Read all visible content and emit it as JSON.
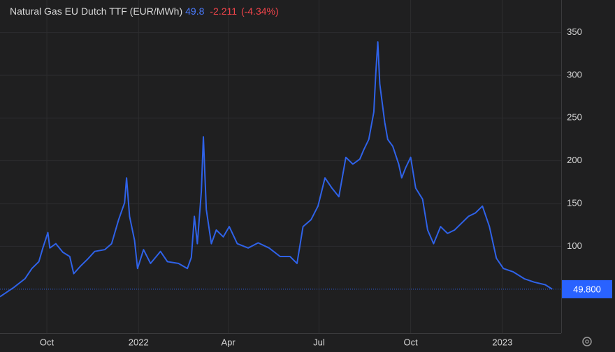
{
  "chart_data": {
    "type": "line",
    "title": "Natural Gas EU Dutch TTF (EUR/MWh)",
    "header_price": "49.8",
    "header_change": "-2.211",
    "header_change_pct": "(-4.34%)",
    "last_value": {
      "value": 49.8,
      "label": "49.800"
    },
    "x": [
      0,
      14,
      25,
      32,
      39,
      43,
      48,
      50,
      56,
      63,
      70,
      74,
      81,
      88,
      95,
      105,
      112,
      119,
      125,
      127,
      130,
      135,
      138,
      144,
      151,
      161,
      168,
      179,
      188,
      192,
      195,
      198,
      202,
      204,
      207,
      212,
      217,
      224,
      230,
      238,
      249,
      259,
      270,
      281,
      291,
      298,
      304,
      312,
      319,
      326,
      333,
      340,
      347,
      354,
      361,
      365,
      370,
      375,
      377,
      379,
      381,
      386,
      389,
      394,
      400,
      403,
      407,
      412,
      417,
      424,
      429,
      435,
      442,
      449,
      456,
      463,
      470,
      477,
      484,
      491,
      498,
      505,
      515,
      526,
      536,
      547,
      554
    ],
    "series": [
      {
        "name": "Natural Gas EU Dutch TTF",
        "color": "#2f62e8",
        "values": [
          41,
          52,
          62,
          74,
          82,
          98,
          116,
          98,
          103,
          93,
          88,
          68,
          77,
          85,
          94,
          96,
          103,
          131,
          151,
          180,
          135,
          107,
          74,
          96,
          80,
          94,
          82,
          80,
          74,
          87,
          135,
          103,
          164,
          228,
          143,
          103,
          119,
          111,
          123,
          103,
          98,
          104,
          98,
          88,
          88,
          80,
          123,
          131,
          147,
          180,
          168,
          158,
          204,
          196,
          202,
          213,
          225,
          257,
          302,
          339,
          290,
          245,
          225,
          217,
          196,
          180,
          192,
          204,
          168,
          155,
          119,
          103,
          123,
          115,
          119,
          127,
          135,
          139,
          147,
          123,
          86,
          74,
          70,
          62,
          58,
          55,
          49.8
        ]
      }
    ],
    "xlim": [
      0,
      563
    ],
    "ylim": [
      0,
      388
    ],
    "xticks": [
      {
        "value": 47,
        "label": "Oct"
      },
      {
        "value": 139,
        "label": "2022"
      },
      {
        "value": 229,
        "label": "Apr"
      },
      {
        "value": 320,
        "label": "Jul"
      },
      {
        "value": 412,
        "label": "Oct"
      },
      {
        "value": 504,
        "label": "2023"
      }
    ],
    "yticks": [
      100,
      150,
      200,
      250,
      300,
      350
    ],
    "grid": true
  }
}
